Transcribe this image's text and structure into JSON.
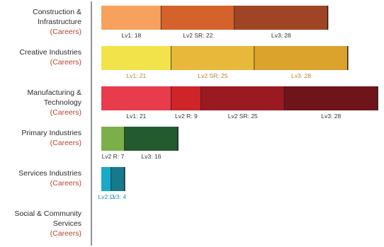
{
  "chart_data": {
    "type": "bar",
    "orientation": "horizontal",
    "stacked": true,
    "grid": false,
    "categories": [
      {
        "name_lines": [
          "Construction &",
          "Infrastructure"
        ],
        "sub": "(Careers)",
        "segments": [
          {
            "label": "Lv1: 18",
            "value": 18,
            "color": "#f6a25e"
          },
          {
            "label": "Lv2 SR: 22",
            "value": 22,
            "color": "#d4622b"
          },
          {
            "label": "Lv3: 28",
            "value": 28,
            "color": "#a04524"
          }
        ]
      },
      {
        "name_lines": [
          "Creative Industries"
        ],
        "sub": "(Careers)",
        "segments": [
          {
            "label": "Lv1: 21",
            "value": 21,
            "color": "#f2e34a"
          },
          {
            "label": "Lv2 SR: 25",
            "value": 25,
            "color": "#e8b83a"
          },
          {
            "label": "Lv3: 28",
            "value": 28,
            "color": "#dba22c"
          }
        ]
      },
      {
        "name_lines": [
          "Manufacturing &",
          "Technology"
        ],
        "sub": "(Careers)",
        "segments": [
          {
            "label": "Lv1: 21",
            "value": 21,
            "color": "#e83c4c"
          },
          {
            "label": "Lv2 R: 9",
            "value": 9,
            "color": "#cf2528"
          },
          {
            "label": "Lv2 SR: 25",
            "value": 25,
            "color": "#9a1a22"
          },
          {
            "label": "Lv3: 28",
            "value": 28,
            "color": "#6f141a"
          }
        ]
      },
      {
        "name_lines": [
          "Primary Industries"
        ],
        "sub": "(Careers)",
        "segments": [
          {
            "label": "Lv2 R: 7",
            "value": 7,
            "color": "#7ab04a"
          },
          {
            "label": "Lv3: 16",
            "value": 16,
            "color": "#235a2e"
          }
        ]
      },
      {
        "name_lines": [
          "Services Industries"
        ],
        "sub": "(Careers)",
        "segments": [
          {
            "label": "Lv2: 3",
            "value": 3,
            "color": "#1aa9c9"
          },
          {
            "label": "Lv3: 4",
            "value": 4,
            "color": "#157a8c"
          }
        ]
      },
      {
        "name_lines": [
          "Social & Community",
          "Services"
        ],
        "sub": "(Careers)",
        "segments": []
      }
    ]
  }
}
